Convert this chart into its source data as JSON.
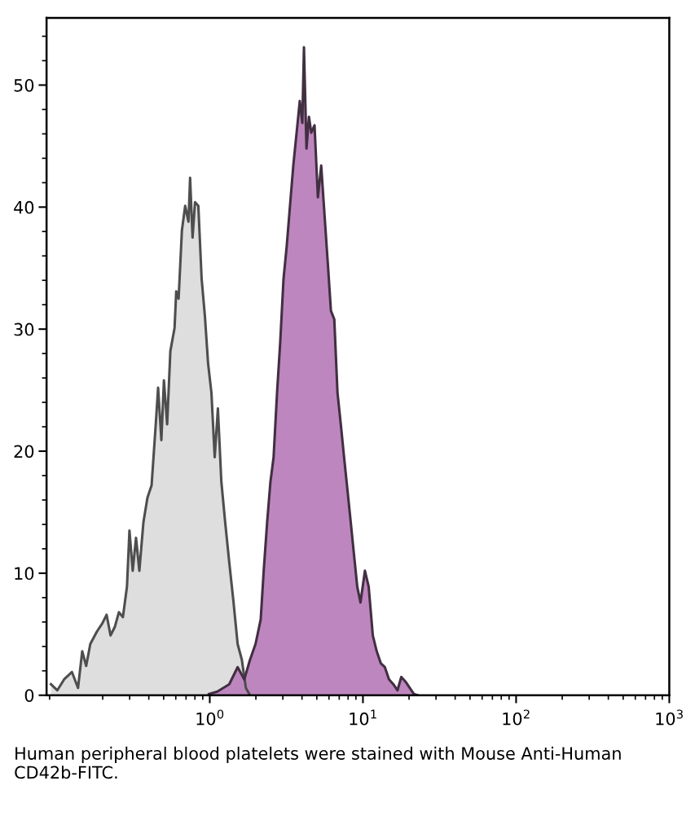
{
  "chart_data": {
    "type": "area",
    "log": "x",
    "xlim": [
      0.086,
      1000
    ],
    "xticks": [
      {
        "value": 1,
        "label": "10$^{0}$"
      },
      {
        "value": 10,
        "label": "10$^{1}$"
      },
      {
        "value": 100,
        "label": "10$^{2}$"
      },
      {
        "value": 1000,
        "label": "10$^{3}$"
      }
    ],
    "ylim": [
      0,
      55.5
    ],
    "yticks": [
      0,
      10,
      20,
      30,
      40,
      50
    ],
    "grid": false,
    "annotations": [
      "Human peripheral blood platelets were stained with Mouse Anti-Human CD42b-FITC."
    ],
    "series": [
      {
        "color": "#dedede",
        "x": [
          0.0918,
          0.101,
          0.112,
          0.126,
          0.138,
          0.147,
          0.156,
          0.166,
          0.183,
          0.199,
          0.212,
          0.225,
          0.24,
          0.255,
          0.271,
          0.288,
          0.299,
          0.314,
          0.33,
          0.347,
          0.369,
          0.392,
          0.417,
          0.444,
          0.46,
          0.483,
          0.502,
          0.527,
          0.553,
          0.589,
          0.604,
          0.626,
          0.658,
          0.691,
          0.726,
          0.744,
          0.772,
          0.801,
          0.842,
          0.885,
          0.929,
          0.975,
          1.025,
          1.077,
          1.13,
          1.19,
          1.26,
          1.34,
          1.43,
          1.52,
          1.62,
          1.72,
          1.83
        ],
        "values": [
          0.9,
          0.4,
          1.3,
          1.9,
          0.6,
          3.6,
          2.4,
          4.2,
          5.2,
          5.9,
          6.6,
          4.9,
          5.6,
          6.8,
          6.4,
          8.9,
          13.5,
          10.2,
          12.9,
          10.2,
          14.2,
          16.2,
          17.2,
          22.2,
          25.2,
          20.9,
          25.8,
          22.2,
          28.2,
          30.1,
          33.1,
          32.5,
          38.1,
          40.1,
          38.8,
          42.4,
          37.5,
          40.4,
          40.1,
          34.1,
          31.1,
          27.2,
          24.8,
          19.5,
          23.5,
          17.5,
          14.2,
          10.9,
          7.6,
          4.2,
          2.9,
          0.6,
          0
        ]
      },
      {
        "color": "#be86be",
        "x": [
          0.988,
          1.12,
          1.34,
          1.52,
          1.68,
          1.83,
          1.99,
          2.15,
          2.25,
          2.37,
          2.49,
          2.61,
          2.75,
          2.88,
          3.03,
          3.18,
          3.34,
          3.51,
          3.69,
          3.87,
          4.02,
          4.12,
          4.28,
          4.44,
          4.6,
          4.83,
          5.08,
          5.34,
          5.61,
          5.89,
          6.18,
          6.5,
          6.82,
          7.17,
          7.53,
          7.91,
          8.32,
          8.73,
          9.18,
          9.64,
          10.3,
          10.9,
          11.6,
          12.3,
          13.1,
          13.9,
          14.8,
          15.8,
          16.8,
          17.8,
          19.0,
          20.2,
          21.5,
          22.8
        ],
        "values": [
          0.1,
          0.3,
          0.9,
          2.3,
          1.3,
          2.9,
          4.2,
          6.2,
          10.2,
          14.2,
          17.5,
          19.5,
          24.8,
          28.8,
          34.1,
          36.8,
          40.1,
          43.4,
          46.1,
          48.7,
          46.9,
          53.1,
          44.8,
          47.4,
          46.1,
          46.7,
          40.8,
          43.4,
          39.4,
          35.5,
          31.5,
          30.8,
          24.8,
          22.2,
          19.5,
          16.9,
          14.2,
          11.6,
          8.9,
          7.6,
          10.2,
          8.9,
          4.9,
          3.6,
          2.6,
          2.3,
          1.3,
          0.9,
          0.4,
          1.5,
          1.1,
          0.6,
          0.1,
          0
        ]
      }
    ]
  }
}
